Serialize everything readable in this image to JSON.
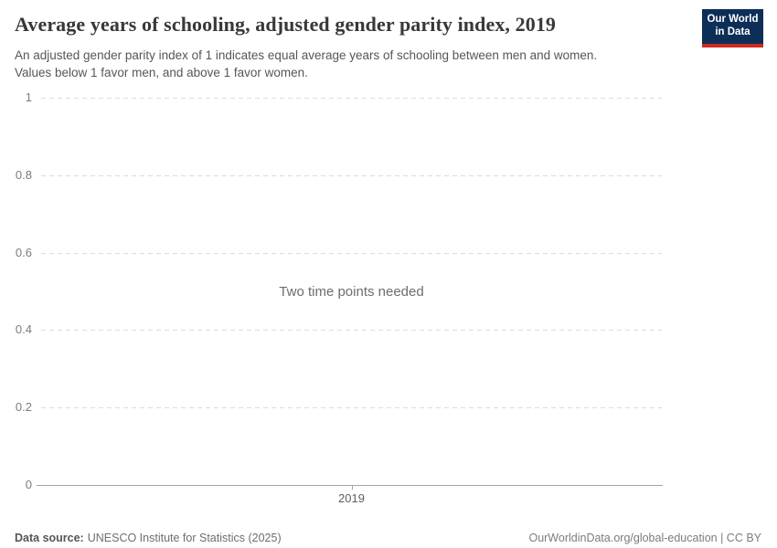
{
  "header": {
    "title": "Average years of schooling, adjusted gender parity index, 2019",
    "subtitle_lines": [
      "An adjusted gender parity index of 1 indicates equal average years of schooling between men and women.",
      "Values below 1 favor men, and above 1 favor women."
    ]
  },
  "logo": {
    "line1": "Our World",
    "line2": "in Data",
    "bg_color": "#0d2e57",
    "accent_color": "#cc2a20"
  },
  "chart_data": {
    "type": "line",
    "title": "Average years of schooling, adjusted gender parity index, 2019",
    "series": [],
    "annotations": [
      "Two time points needed"
    ],
    "ylim": [
      0,
      1
    ],
    "y_ticks": [
      0,
      0.2,
      0.4,
      0.6,
      0.8,
      1
    ],
    "y_tick_labels": [
      "0",
      "0.2",
      "0.4",
      "0.6",
      "0.8",
      "1"
    ],
    "x_ticks": [
      2019
    ],
    "x_tick_labels": [
      "2019"
    ],
    "grid": "dashed-horizontal",
    "legend": "none"
  },
  "footer": {
    "source_label": "Data source:",
    "source_text": "UNESCO Institute for Statistics (2025)",
    "link_text": "OurWorldinData.org/global-education | CC BY"
  }
}
